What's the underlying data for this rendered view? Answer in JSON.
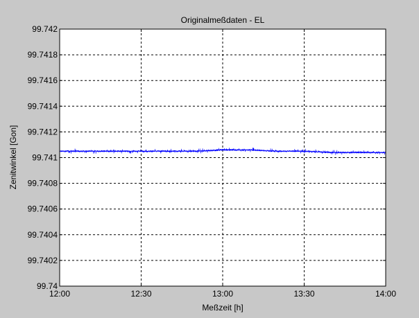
{
  "chart_data": {
    "type": "line",
    "title": "Originalmeßdaten - EL",
    "xlabel": "Meßzeit [h]",
    "ylabel": "Zenitwinkel [Gon]",
    "xlim": [
      "12:00",
      "14:00"
    ],
    "ylim": [
      99.74,
      99.742
    ],
    "x_ticks": [
      "12:00",
      "12:30",
      "13:00",
      "13:30",
      "14:00"
    ],
    "y_ticks": [
      "99.74",
      "99.7402",
      "99.7404",
      "99.7406",
      "99.7408",
      "99.741",
      "99.7412",
      "99.7414",
      "99.7416",
      "99.7418",
      "99.742"
    ],
    "grid": true,
    "series": [
      {
        "color": "#0000ff",
        "x": [
          "12:00",
          "12:10",
          "12:20",
          "12:30",
          "12:40",
          "12:50",
          "13:00",
          "13:10",
          "13:20",
          "13:30",
          "13:40",
          "13:50",
          "14:00"
        ],
        "mean": [
          99.74105,
          99.74105,
          99.74105,
          99.74105,
          99.74105,
          99.74105,
          99.74106,
          99.74106,
          99.74105,
          99.74105,
          99.74104,
          99.74104,
          99.74104
        ],
        "min": [
          99.74092,
          99.7409,
          99.74092,
          99.74088,
          99.74088,
          99.7409,
          99.7409,
          99.7409,
          99.7409,
          99.74088,
          99.74086,
          99.74082,
          99.74088
        ],
        "max": [
          99.74122,
          99.74124,
          99.74124,
          99.74129,
          99.74125,
          99.74126,
          99.74125,
          99.74126,
          99.74124,
          99.74125,
          99.74124,
          99.74123,
          99.7412
        ]
      }
    ]
  }
}
